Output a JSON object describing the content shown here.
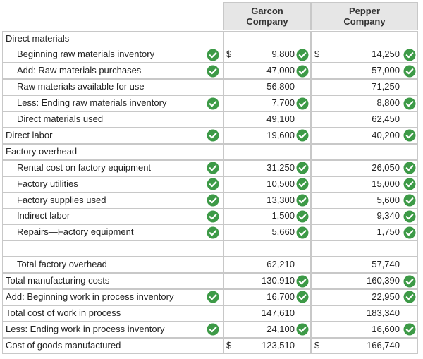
{
  "header": {
    "columns": [
      "Garcon Company",
      "Pepper Company"
    ]
  },
  "rows": [
    {
      "label": "Direct materials"
    },
    {
      "label": "Beginning raw materials inventory",
      "garcon": {
        "currency": "$",
        "amount": "9,800"
      },
      "pepper": {
        "currency": "$",
        "amount": "14,250"
      }
    },
    {
      "label": "Add: Raw materials purchases",
      "garcon": {
        "amount": "47,000"
      },
      "pepper": {
        "amount": "57,000"
      }
    },
    {
      "label": "Raw materials available for use",
      "garcon": {
        "amount": "56,800"
      },
      "pepper": {
        "amount": "71,250"
      }
    },
    {
      "label": "Less: Ending raw materials inventory",
      "garcon": {
        "amount": "7,700"
      },
      "pepper": {
        "amount": "8,800"
      }
    },
    {
      "label": "Direct materials used",
      "garcon": {
        "amount": "49,100"
      },
      "pepper": {
        "amount": "62,450"
      }
    },
    {
      "label": "Direct labor",
      "garcon": {
        "amount": "19,600"
      },
      "pepper": {
        "amount": "40,200"
      }
    },
    {
      "label": "Factory overhead"
    },
    {
      "label": "Rental cost on factory equipment",
      "garcon": {
        "amount": "31,250"
      },
      "pepper": {
        "amount": "26,050"
      }
    },
    {
      "label": "Factory utilities",
      "garcon": {
        "amount": "10,500"
      },
      "pepper": {
        "amount": "15,000"
      }
    },
    {
      "label": "Factory supplies used",
      "garcon": {
        "amount": "13,300"
      },
      "pepper": {
        "amount": "5,600"
      }
    },
    {
      "label": "Indirect labor",
      "garcon": {
        "amount": "1,500"
      },
      "pepper": {
        "amount": "9,340"
      }
    },
    {
      "label": "Repairs—Factory equipment",
      "garcon": {
        "amount": "5,660"
      },
      "pepper": {
        "amount": "1,750"
      }
    },
    {
      "label": "Total factory overhead",
      "garcon": {
        "amount": "62,210"
      },
      "pepper": {
        "amount": "57,740"
      }
    },
    {
      "label": "Total manufacturing costs",
      "garcon": {
        "amount": "130,910"
      },
      "pepper": {
        "amount": "160,390"
      }
    },
    {
      "label": "Add: Beginning work in process inventory",
      "garcon": {
        "amount": "16,700"
      },
      "pepper": {
        "amount": "22,950"
      }
    },
    {
      "label": "Total cost of work in process",
      "garcon": {
        "amount": "147,610"
      },
      "pepper": {
        "amount": "183,340"
      }
    },
    {
      "label": "Less: Ending work in process inventory",
      "garcon": {
        "amount": "24,100"
      },
      "pepper": {
        "amount": "16,600"
      }
    },
    {
      "label": "Cost of goods manufactured",
      "garcon": {
        "currency": "$",
        "amount": "123,510"
      },
      "pepper": {
        "currency": "$",
        "amount": "166,740"
      }
    }
  ]
}
